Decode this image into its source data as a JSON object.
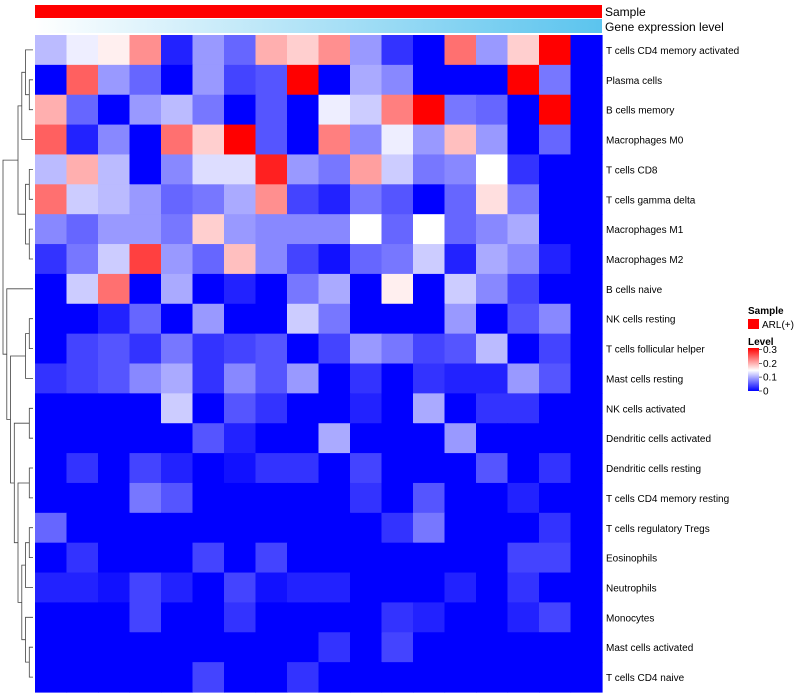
{
  "chart_data": {
    "type": "heatmap",
    "title": "",
    "annotations": [
      {
        "name": "Sample",
        "value": "ARL(+)",
        "color": "#ff0000"
      },
      {
        "name": "Gene expression level",
        "gradient": [
          "#ffffff",
          "#5bc4ee"
        ]
      }
    ],
    "rows": [
      "T cells CD4 memory activated",
      "Plasma cells",
      "B cells memory",
      "Macrophages M0",
      "T cells CD8",
      "T cells gamma delta",
      "Macrophages M1",
      "Macrophages M2",
      "B cells naive",
      "NK cells resting",
      "T cells follicular helper",
      "Mast cells resting",
      "NK cells activated",
      "Dendritic cells activated",
      "Dendritic cells resting",
      "T cells CD4 memory resting",
      "T cells regulatory  Tregs",
      "Eosinophils",
      "Neutrophils",
      "Monocytes",
      "Mast cells activated",
      "T cells CD4 naive"
    ],
    "n_columns": 18,
    "values": [
      [
        0.11,
        0.14,
        0.16,
        0.22,
        0.02,
        0.09,
        0.06,
        0.2,
        0.18,
        0.22,
        0.09,
        0.03,
        0.0,
        0.24,
        0.09,
        0.18,
        0.31,
        0.0
      ],
      [
        0.0,
        0.25,
        0.09,
        0.06,
        0.0,
        0.09,
        0.04,
        0.05,
        0.31,
        0.0,
        0.1,
        0.08,
        0.0,
        0.0,
        0.0,
        0.31,
        0.07,
        0.0
      ],
      [
        0.2,
        0.06,
        0.0,
        0.09,
        0.11,
        0.07,
        0.0,
        0.05,
        0.0,
        0.14,
        0.12,
        0.23,
        0.31,
        0.07,
        0.06,
        0.0,
        0.31,
        0.0
      ],
      [
        0.25,
        0.02,
        0.08,
        0.0,
        0.24,
        0.18,
        0.31,
        0.05,
        0.0,
        0.23,
        0.08,
        0.14,
        0.09,
        0.19,
        0.09,
        0.0,
        0.06,
        0.0
      ],
      [
        0.11,
        0.2,
        0.11,
        0.0,
        0.08,
        0.13,
        0.13,
        0.29,
        0.09,
        0.07,
        0.21,
        0.12,
        0.07,
        0.08,
        0.15,
        0.03,
        0.0,
        0.0
      ],
      [
        0.24,
        0.12,
        0.11,
        0.09,
        0.06,
        0.07,
        0.1,
        0.22,
        0.04,
        0.02,
        0.07,
        0.05,
        0.0,
        0.06,
        0.17,
        0.07,
        0.0,
        0.0
      ],
      [
        0.08,
        0.06,
        0.09,
        0.09,
        0.07,
        0.18,
        0.09,
        0.08,
        0.08,
        0.08,
        0.15,
        0.06,
        0.15,
        0.06,
        0.08,
        0.1,
        0.0,
        0.0
      ],
      [
        0.03,
        0.07,
        0.12,
        0.27,
        0.09,
        0.06,
        0.19,
        0.08,
        0.04,
        0.01,
        0.06,
        0.07,
        0.12,
        0.02,
        0.1,
        0.08,
        0.02,
        0.0
      ],
      [
        0.0,
        0.12,
        0.24,
        0.0,
        0.1,
        0.0,
        0.02,
        0.0,
        0.07,
        0.1,
        0.0,
        0.16,
        0.0,
        0.12,
        0.08,
        0.04,
        0.0,
        0.0
      ],
      [
        0.0,
        0.0,
        0.02,
        0.06,
        0.0,
        0.09,
        0.0,
        0.0,
        0.12,
        0.07,
        0.0,
        0.0,
        0.0,
        0.09,
        0.0,
        0.05,
        0.08,
        0.0
      ],
      [
        0.0,
        0.04,
        0.05,
        0.03,
        0.07,
        0.03,
        0.04,
        0.05,
        0.0,
        0.04,
        0.09,
        0.07,
        0.04,
        0.05,
        0.11,
        0.0,
        0.04,
        0.0
      ],
      [
        0.03,
        0.04,
        0.05,
        0.08,
        0.1,
        0.03,
        0.08,
        0.05,
        0.09,
        0.0,
        0.03,
        0.0,
        0.03,
        0.02,
        0.02,
        0.09,
        0.05,
        0.0
      ],
      [
        0.0,
        0.0,
        0.0,
        0.0,
        0.12,
        0.0,
        0.05,
        0.03,
        0.0,
        0.0,
        0.02,
        0.0,
        0.1,
        0.0,
        0.03,
        0.03,
        0.0,
        0.0
      ],
      [
        0.0,
        0.0,
        0.0,
        0.0,
        0.0,
        0.05,
        0.02,
        0.0,
        0.0,
        0.1,
        0.0,
        0.0,
        0.0,
        0.09,
        0.0,
        0.0,
        0.0,
        0.0
      ],
      [
        0.0,
        0.03,
        0.0,
        0.04,
        0.02,
        0.0,
        0.01,
        0.03,
        0.03,
        0.0,
        0.04,
        0.0,
        0.0,
        0.0,
        0.05,
        0.0,
        0.03,
        0.0
      ],
      [
        0.0,
        0.0,
        0.0,
        0.07,
        0.05,
        0.0,
        0.0,
        0.0,
        0.0,
        0.0,
        0.03,
        0.0,
        0.05,
        0.0,
        0.0,
        0.02,
        0.0,
        0.0
      ],
      [
        0.06,
        0.0,
        0.0,
        0.0,
        0.0,
        0.0,
        0.0,
        0.0,
        0.0,
        0.0,
        0.0,
        0.03,
        0.07,
        0.0,
        0.0,
        0.0,
        0.03,
        0.0
      ],
      [
        0.0,
        0.03,
        0.0,
        0.0,
        0.0,
        0.04,
        0.0,
        0.04,
        0.0,
        0.0,
        0.0,
        0.0,
        0.0,
        0.0,
        0.0,
        0.04,
        0.04,
        0.0
      ],
      [
        0.02,
        0.02,
        0.01,
        0.04,
        0.02,
        0.0,
        0.04,
        0.01,
        0.02,
        0.02,
        0.0,
        0.0,
        0.0,
        0.02,
        0.0,
        0.03,
        0.0,
        0.0
      ],
      [
        0.0,
        0.0,
        0.0,
        0.04,
        0.0,
        0.0,
        0.03,
        0.0,
        0.0,
        0.0,
        0.0,
        0.03,
        0.02,
        0.0,
        0.0,
        0.02,
        0.04,
        0.0
      ],
      [
        0.0,
        0.0,
        0.0,
        0.0,
        0.0,
        0.0,
        0.0,
        0.0,
        0.0,
        0.03,
        0.0,
        0.04,
        0.0,
        0.0,
        0.0,
        0.0,
        0.0,
        0.0
      ],
      [
        0.0,
        0.0,
        0.0,
        0.0,
        0.0,
        0.04,
        0.0,
        0.0,
        0.03,
        0.0,
        0.0,
        0.0,
        0.0,
        0.0,
        0.0,
        0.0,
        0.0,
        0.0
      ]
    ],
    "color_scale": {
      "low": "#0000ff",
      "mid": "#ffffff",
      "high": "#ff0000",
      "min": 0,
      "mid_value": 0.15,
      "max": 0.31
    },
    "legend": {
      "sample_title": "Sample",
      "sample_entry": "ARL(+)",
      "level_title": "Level",
      "level_ticks": [
        "0.3",
        "0.2",
        "0.1",
        "0"
      ],
      "level_tick_values": [
        0.3,
        0.2,
        0.1,
        0
      ],
      "placement": "right"
    },
    "row_dendrogram": true,
    "column_dendrogram": false
  }
}
